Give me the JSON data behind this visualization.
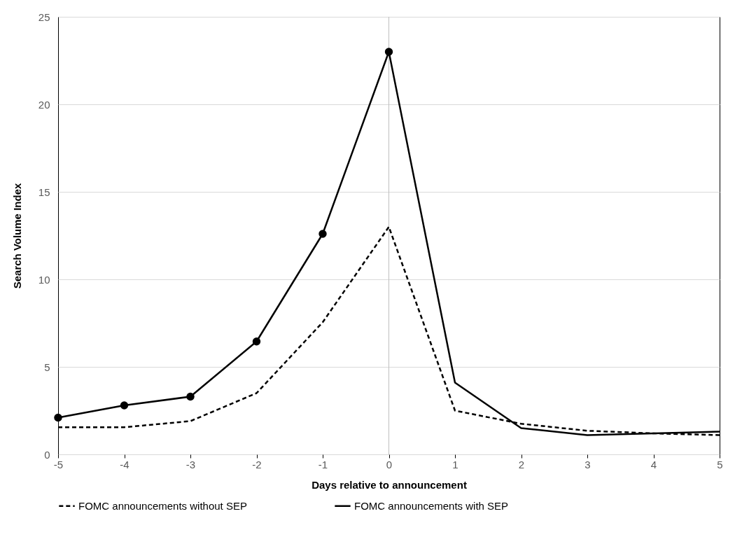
{
  "chart_data": {
    "type": "line",
    "xlabel": "Days relative to announcement",
    "ylabel": "Search Volume Index",
    "x": [
      -5,
      -4,
      -3,
      -2,
      -1,
      0,
      1,
      2,
      3,
      4,
      5
    ],
    "xlim": [
      -5,
      5
    ],
    "xticks": [
      -5,
      -4,
      -3,
      -2,
      -1,
      0,
      1,
      2,
      3,
      4,
      5
    ],
    "ylim": [
      0,
      25
    ],
    "yticks": [
      0,
      5,
      10,
      15,
      20,
      25
    ],
    "grid": "y",
    "legend": "bottom",
    "ref_lines": [
      {
        "axis": "x",
        "value": 0,
        "color": "#bfbfbf"
      }
    ],
    "series": [
      {
        "name": "FOMC announcements without SEP",
        "color": "#000000",
        "line_style": "dashed",
        "marker": "none",
        "values": [
          1.55,
          1.55,
          1.9,
          3.5,
          7.55,
          13.0,
          2.5,
          1.75,
          1.35,
          1.2,
          1.1
        ]
      },
      {
        "name": "FOMC announcements with SEP",
        "color": "#000000",
        "line_style": "solid",
        "marker": "none",
        "values": [
          2.1,
          2.8,
          3.3,
          6.45,
          12.6,
          23.0,
          4.1,
          1.5,
          1.1,
          1.2,
          1.3
        ]
      },
      {
        "type": "scatter",
        "color": "#000000",
        "marker": "circle",
        "x": [
          -5,
          -4,
          -3,
          -2,
          -1,
          0
        ],
        "values": [
          2.1,
          2.8,
          3.3,
          6.45,
          12.6,
          23.0
        ]
      }
    ]
  }
}
